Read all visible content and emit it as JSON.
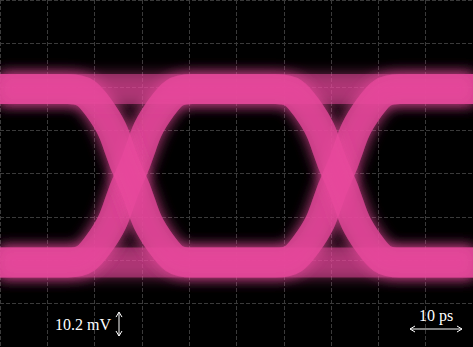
{
  "chart_data": {
    "type": "eye_diagram",
    "color": "#e8489c",
    "grid": true,
    "tick_labels": false,
    "xlim": [
      0,
      91
    ],
    "xticks": [
      0,
      9.1,
      18.2,
      27.3,
      36.4,
      45.5,
      54.6,
      63.7,
      72.8,
      81.9,
      91
    ],
    "ylim": [
      -74,
      74
    ],
    "yticks": [
      -74,
      -55.5,
      -37,
      -18.5,
      0,
      18.5,
      37,
      55.5,
      74
    ],
    "x": [
      0,
      8,
      13,
      19,
      25,
      31,
      37,
      45,
      53,
      59,
      65,
      71,
      77,
      85,
      91
    ],
    "series": [
      {
        "values": [
          -38,
          -38,
          -38,
          -38,
          -38,
          -38,
          -38,
          -38,
          -38,
          -38,
          -38,
          -38,
          -38,
          -38,
          -38
        ]
      },
      {
        "values": [
          -38,
          -38,
          -38,
          -38,
          -38,
          -38,
          -38,
          -38,
          -38,
          -30,
          -1,
          28,
          36,
          36,
          36
        ]
      },
      {
        "values": [
          -38,
          -38,
          -38,
          -30,
          -1,
          28,
          36,
          36,
          36,
          28,
          -1,
          -30,
          -38,
          -38,
          -38
        ]
      },
      {
        "values": [
          -38,
          -38,
          -38,
          -30,
          -1,
          28,
          36,
          36,
          36,
          36,
          36,
          36,
          36,
          36,
          36
        ]
      },
      {
        "values": [
          36,
          36,
          36,
          28,
          -1,
          -30,
          -38,
          -38,
          -38,
          -38,
          -38,
          -38,
          -38,
          -38,
          -38
        ]
      },
      {
        "values": [
          36,
          36,
          36,
          28,
          -1,
          -30,
          -38,
          -38,
          -38,
          -30,
          -1,
          28,
          36,
          36,
          36
        ]
      },
      {
        "values": [
          36,
          36,
          36,
          36,
          36,
          36,
          36,
          36,
          36,
          28,
          -1,
          -30,
          -38,
          -38,
          -38
        ]
      },
      {
        "values": [
          36,
          36,
          36,
          36,
          36,
          36,
          36,
          36,
          36,
          36,
          36,
          36,
          36,
          36,
          36
        ]
      }
    ],
    "scale_bars": [
      {
        "label": "10.2 mV",
        "length": 10.2,
        "axis": "y"
      },
      {
        "label": "10 ps",
        "length": 10,
        "axis": "x"
      }
    ]
  }
}
